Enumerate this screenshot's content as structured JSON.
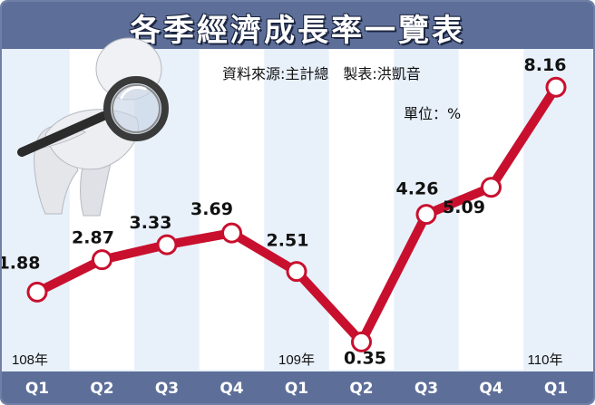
{
  "header": {
    "title": "各季經濟成長率一覽表",
    "source": "資料來源:主計總　製表:洪凱音",
    "unit": "單位：%"
  },
  "chart_data": {
    "type": "line",
    "title": "各季經濟成長率一覽表",
    "unit": "%",
    "categories": [
      "Q1",
      "Q2",
      "Q3",
      "Q4",
      "Q1",
      "Q2",
      "Q3",
      "Q4",
      "Q1"
    ],
    "year_labels": [
      {
        "index": 0,
        "label": "108年"
      },
      {
        "index": 4,
        "label": "109年"
      },
      {
        "index": 8,
        "label": "110年"
      }
    ],
    "values": [
      1.88,
      2.87,
      3.33,
      3.69,
      2.51,
      0.35,
      4.26,
      5.09,
      8.16
    ],
    "value_labels": [
      "1.88",
      "2.87",
      "3.33",
      "3.69",
      "2.51",
      "0.35",
      "4.26",
      "5.09",
      "8.16"
    ],
    "ylim": [
      0,
      8.5
    ],
    "grid": false,
    "line_color": "#c8102e",
    "marker_fill": "#ffffff"
  },
  "colors": {
    "header_bg": "#5d6f99",
    "plot_bg_light": "#e8f0fa",
    "plot_bg_stripe": "#ffffff",
    "line": "#c8102e"
  },
  "illustration": "magnifying-glass-figure"
}
